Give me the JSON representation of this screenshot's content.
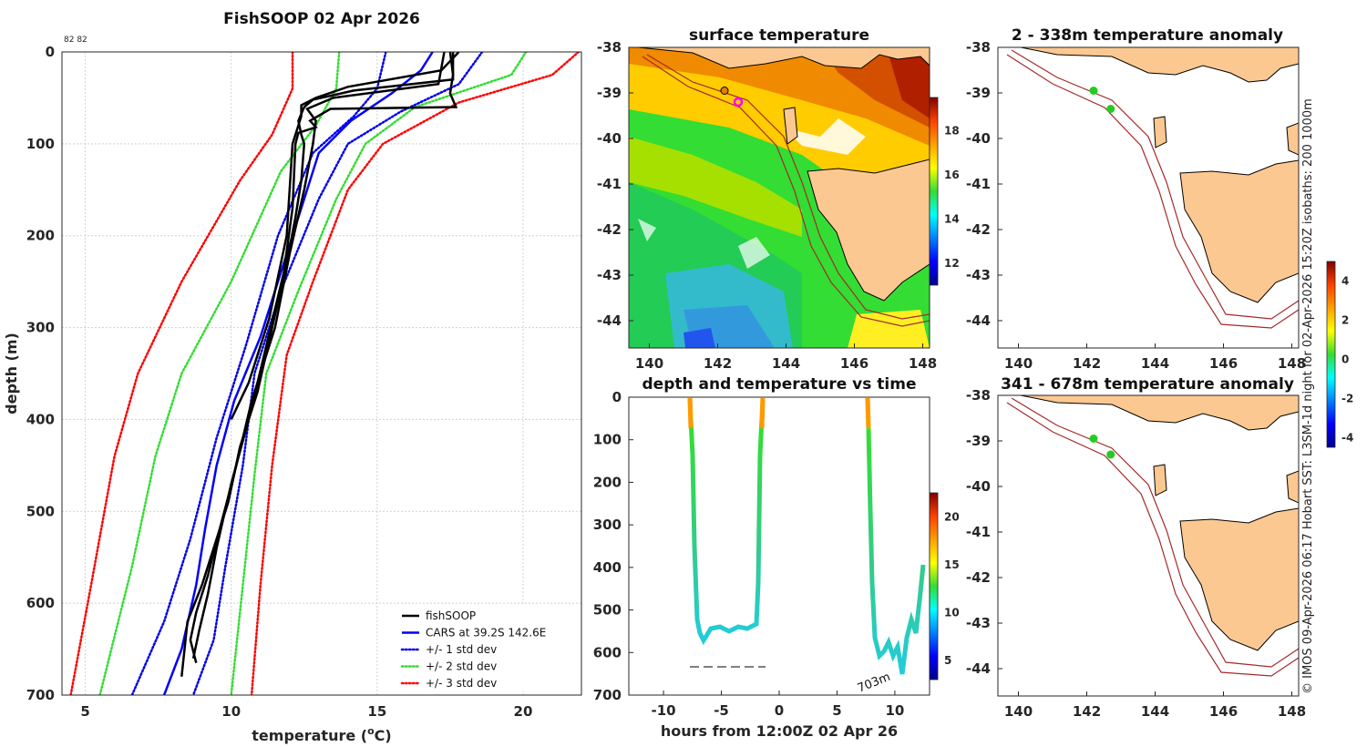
{
  "chart_data": [
    {
      "id": "profile",
      "type": "line",
      "title": "FishSOOP 02 Apr 2026",
      "header_note": "82 82",
      "xlabel": "temperature (",
      "xlabel_unit_sup": "o",
      "xlabel_unit": "C)",
      "ylabel": "depth (m)",
      "xlim": [
        4.2,
        22
      ],
      "ylim": [
        0,
        700
      ],
      "xticks": [
        5,
        10,
        15,
        20
      ],
      "yticks": [
        0,
        100,
        200,
        300,
        400,
        500,
        600,
        700
      ],
      "series": [
        {
          "name": "+/- 3 std dev",
          "color": "#ff0000",
          "style": "dotted",
          "side": "left",
          "points": [
            [
              12.1,
              0
            ],
            [
              12.1,
              40
            ],
            [
              11.4,
              90
            ],
            [
              10.3,
              140
            ],
            [
              8.3,
              250
            ],
            [
              6.8,
              350
            ],
            [
              6.0,
              440
            ],
            [
              5.2,
              580
            ],
            [
              4.5,
              700
            ]
          ]
        },
        {
          "name": "+/- 3 std dev",
          "color": "#ff0000",
          "style": "dotted",
          "side": "right",
          "points": [
            [
              21.9,
              0
            ],
            [
              21.0,
              25
            ],
            [
              17.8,
              55
            ],
            [
              15.2,
              100
            ],
            [
              14.0,
              150
            ],
            [
              12.8,
              250
            ],
            [
              11.9,
              330
            ],
            [
              11.4,
              450
            ],
            [
              11.0,
              580
            ],
            [
              10.7,
              700
            ]
          ]
        },
        {
          "name": "+/- 2 std dev",
          "color": "#33dd33",
          "style": "dotted",
          "side": "left",
          "points": [
            [
              13.7,
              0
            ],
            [
              13.6,
              40
            ],
            [
              12.9,
              80
            ],
            [
              11.7,
              130
            ],
            [
              10.0,
              250
            ],
            [
              8.3,
              350
            ],
            [
              7.4,
              440
            ],
            [
              6.6,
              560
            ],
            [
              5.5,
              700
            ]
          ]
        },
        {
          "name": "+/- 2 std dev",
          "color": "#33dd33",
          "style": "dotted",
          "side": "right",
          "points": [
            [
              20.1,
              0
            ],
            [
              19.6,
              25
            ],
            [
              16.3,
              60
            ],
            [
              14.6,
              100
            ],
            [
              13.6,
              160
            ],
            [
              12.3,
              260
            ],
            [
              11.2,
              350
            ],
            [
              10.8,
              460
            ],
            [
              10.4,
              580
            ],
            [
              10.0,
              700
            ]
          ]
        },
        {
          "name": "+/- 1 std dev",
          "color": "#0000ee",
          "style": "dotted",
          "side": "left",
          "points": [
            [
              15.3,
              0
            ],
            [
              15.0,
              40
            ],
            [
              14.2,
              70
            ],
            [
              12.8,
              110
            ],
            [
              11.6,
              200
            ],
            [
              10.5,
              320
            ],
            [
              9.5,
              420
            ],
            [
              8.6,
              530
            ],
            [
              7.7,
              620
            ],
            [
              6.6,
              700
            ]
          ]
        },
        {
          "name": "+/- 1 std dev",
          "color": "#0000ee",
          "style": "dotted",
          "side": "right",
          "points": [
            [
              18.6,
              0
            ],
            [
              17.8,
              35
            ],
            [
              15.8,
              65
            ],
            [
              14.0,
              100
            ],
            [
              13.0,
              160
            ],
            [
              11.7,
              260
            ],
            [
              10.8,
              350
            ],
            [
              10.4,
              450
            ],
            [
              9.8,
              560
            ],
            [
              9.4,
              640
            ],
            [
              8.7,
              700
            ]
          ]
        },
        {
          "name": "CARS at 39.2S 142.6E",
          "color": "#0000ff",
          "style": "solid",
          "width": 2.5,
          "points": [
            [
              16.9,
              0
            ],
            [
              16.5,
              20
            ],
            [
              15.5,
              45
            ],
            [
              14.1,
              75
            ],
            [
              13.0,
              110
            ],
            [
              12.5,
              160
            ],
            [
              11.8,
              230
            ],
            [
              11.0,
              310
            ],
            [
              10.1,
              380
            ],
            [
              9.5,
              450
            ],
            [
              9.1,
              520
            ],
            [
              8.8,
              580
            ],
            [
              8.3,
              650
            ],
            [
              7.7,
              700
            ]
          ]
        },
        {
          "name": "fishSOOP",
          "color": "#000000",
          "style": "solid",
          "width": 2.5,
          "points": [
            [
              17.6,
              0
            ],
            [
              17.6,
              30
            ],
            [
              14.2,
              42
            ],
            [
              12.8,
              52
            ],
            [
              12.5,
              60
            ],
            [
              12.3,
              75
            ],
            [
              12.4,
              90
            ],
            [
              12.5,
              100
            ],
            [
              12.4,
              140
            ],
            [
              12.2,
              180
            ],
            [
              11.9,
              230
            ],
            [
              11.4,
              300
            ],
            [
              10.9,
              370
            ],
            [
              10.3,
              430
            ],
            [
              9.9,
              490
            ],
            [
              9.4,
              540
            ],
            [
              9.0,
              580
            ],
            [
              8.5,
              620
            ],
            [
              8.4,
              650
            ],
            [
              8.3,
              680
            ]
          ]
        },
        {
          "name": "fishSOOP",
          "color": "#000000",
          "style": "solid",
          "width": 2.5,
          "points": [
            [
              17.3,
              0
            ],
            [
              17.1,
              35
            ],
            [
              13.5,
              50
            ],
            [
              12.6,
              62
            ],
            [
              12.9,
              75
            ],
            [
              12.8,
              100
            ],
            [
              12.5,
              150
            ],
            [
              12.0,
              220
            ],
            [
              11.5,
              300
            ],
            [
              10.7,
              380
            ],
            [
              10.1,
              460
            ],
            [
              9.6,
              520
            ],
            [
              9.2,
              570
            ],
            [
              8.8,
              610
            ],
            [
              8.6,
              640
            ],
            [
              8.8,
              665
            ]
          ]
        },
        {
          "name": "fishSOOP",
          "color": "#000000",
          "style": "solid",
          "width": 2.5,
          "points": [
            [
              17.5,
              0
            ],
            [
              17.6,
              25
            ],
            [
              17.5,
              45
            ],
            [
              17.7,
              60
            ],
            [
              13.4,
              62
            ],
            [
              12.7,
              75
            ],
            [
              12.9,
              82
            ],
            [
              12.3,
              88
            ],
            [
              12.2,
              100
            ],
            [
              12.1,
              170
            ],
            [
              11.8,
              240
            ],
            [
              11.2,
              320
            ],
            [
              10.6,
              400
            ],
            [
              10.0,
              470
            ],
            [
              9.5,
              540
            ],
            [
              9.2,
              590
            ],
            [
              8.9,
              630
            ],
            [
              8.7,
              660
            ]
          ]
        },
        {
          "name": "fishSOOP",
          "color": "#000000",
          "style": "solid",
          "width": 2.5,
          "points": [
            [
              17.8,
              0
            ],
            [
              17.2,
              20
            ],
            [
              14.0,
              38
            ],
            [
              12.9,
              50
            ],
            [
              12.4,
              58
            ],
            [
              12.4,
              70
            ],
            [
              12.1,
              100
            ],
            [
              11.9,
              200
            ],
            [
              11.3,
              290
            ],
            [
              10.6,
              360
            ],
            [
              10.0,
              400
            ]
          ]
        }
      ],
      "legend": [
        {
          "label": "fishSOOP",
          "color": "#000000",
          "style": "solid"
        },
        {
          "label": "CARS at 39.2S 142.6E",
          "color": "#0000ff",
          "style": "solid"
        },
        {
          "label": "+/- 1 std dev",
          "color": "#0000ee",
          "style": "dotted"
        },
        {
          "label": "+/- 2 std dev",
          "color": "#33dd33",
          "style": "dotted"
        },
        {
          "label": "+/- 3 std dev",
          "color": "#ff0000",
          "style": "dotted"
        }
      ],
      "legend_position": "bottom-right"
    },
    {
      "id": "sst_map",
      "type": "heatmap",
      "title": "surface temperature",
      "xlim": [
        139.4,
        148.2
      ],
      "ylim": [
        -44.6,
        -38
      ],
      "xticks": [
        140,
        142,
        144,
        146,
        148
      ],
      "yticks": [
        -38,
        -39,
        -40,
        -41,
        -42,
        -43,
        -44
      ],
      "colorbar_range": [
        11,
        19.5
      ],
      "colorbar_ticks": [
        12,
        14,
        16,
        18
      ],
      "track_points": [
        [
          142.2,
          -38.95
        ],
        [
          142.6,
          -39.2
        ]
      ]
    },
    {
      "id": "time_series",
      "type": "line",
      "title": "depth and temperature vs time",
      "xlabel": "hours from 12:00Z 02 Apr 26",
      "xlim": [
        -13,
        13
      ],
      "ylim": [
        0,
        700
      ],
      "xticks": [
        -10,
        -5,
        0,
        5,
        10
      ],
      "yticks": [
        0,
        100,
        200,
        300,
        400,
        500,
        600,
        700
      ],
      "annotation": "703m",
      "colorbar_range": [
        3,
        22.5
      ],
      "colorbar_ticks": [
        5,
        10,
        15,
        20
      ]
    },
    {
      "id": "anomaly_upper",
      "type": "heatmap",
      "title": "2 - 338m temperature anomaly",
      "xlim": [
        139.4,
        148.2
      ],
      "ylim": [
        -44.6,
        -38
      ],
      "xticks": [
        140,
        142,
        144,
        146,
        148
      ],
      "yticks": [
        -38,
        -39,
        -40,
        -41,
        -42,
        -43,
        -44
      ],
      "points": [
        [
          142.2,
          -38.95
        ],
        [
          142.7,
          -39.35
        ]
      ]
    },
    {
      "id": "anomaly_lower",
      "type": "heatmap",
      "title": "341 - 678m temperature anomaly",
      "xlim": [
        139.4,
        148.2
      ],
      "ylim": [
        -44.6,
        -38
      ],
      "xticks": [
        140,
        142,
        144,
        146,
        148
      ],
      "yticks": [
        -38,
        -39,
        -40,
        -41,
        -42,
        -43,
        -44
      ],
      "points": [
        [
          142.2,
          -38.95
        ],
        [
          142.7,
          -39.3
        ]
      ],
      "colorbar_range": [
        -4.5,
        5
      ],
      "colorbar_ticks": [
        -4,
        -2,
        0,
        2,
        4
      ]
    }
  ],
  "side_note": "© IMOS 09-Apr-2026 06:17 Hobart SST: L3SM-1d night for 02-Apr-2026 15:20Z isobaths: 200  1000m",
  "colors": {
    "land": "#fcc891",
    "isobath": "#a52a2a",
    "track_point": "#22cc22",
    "marker_magenta": "#ff00ff"
  }
}
